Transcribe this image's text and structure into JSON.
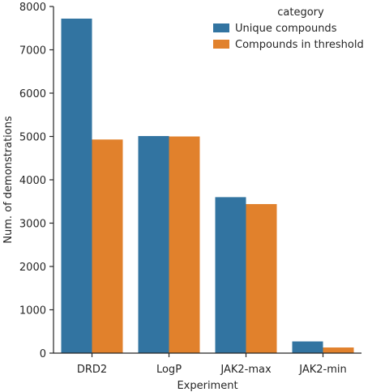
{
  "chart_data": {
    "type": "bar",
    "xlabel": "Experiment",
    "ylabel": "Num. of demonstrations",
    "categories": [
      "DRD2",
      "LogP",
      "JAK2-max",
      "JAK2-min"
    ],
    "series": [
      {
        "name": "Unique compounds",
        "values": [
          7720,
          5010,
          3600,
          270
        ],
        "color": "#3274a1"
      },
      {
        "name": "Compounds in threshold",
        "values": [
          4930,
          5000,
          3440,
          130
        ],
        "color": "#e1812c"
      }
    ],
    "ylim": [
      0,
      8000
    ],
    "yticks": [
      0,
      1000,
      2000,
      3000,
      4000,
      5000,
      6000,
      7000,
      8000
    ],
    "legend": {
      "title": "category",
      "placement": "top-right"
    },
    "grid": false
  }
}
